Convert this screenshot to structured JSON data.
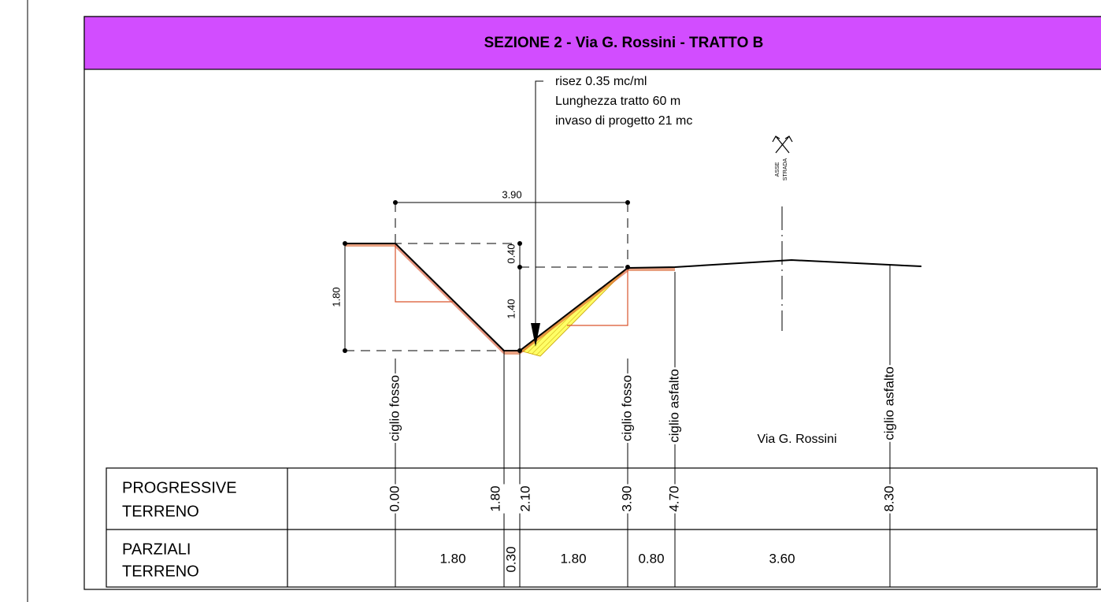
{
  "title": "SEZIONE 2 - Via G. Rossini - TRATTO B",
  "note": [
    "risez 0.35 mc/ml",
    "Lunghezza tratto 60 m",
    "invaso di progetto 21 mc"
  ],
  "axis_label": [
    "ASSE",
    "STRADA"
  ],
  "dimensions": {
    "width": "3.90",
    "depth_total": "1.80",
    "depth_top": "0.40",
    "depth_bottom": "1.40"
  },
  "markers": [
    "ciglio fosso",
    "ciglio fosso",
    "ciglio asfalto",
    "ciglio asfalto"
  ],
  "road_name": "Via G. Rossini",
  "table": {
    "rows": [
      {
        "label": [
          "PROGRESSIVE",
          "TERRENO"
        ],
        "values": [
          "0.00",
          "1.80",
          "2.10",
          "3.90",
          "4.70",
          "8.30"
        ]
      },
      {
        "label": [
          "PARZIALI",
          "TERRENO"
        ],
        "values": [
          "1.80",
          "0.30",
          "1.80",
          "0.80",
          "3.60"
        ]
      }
    ]
  }
}
